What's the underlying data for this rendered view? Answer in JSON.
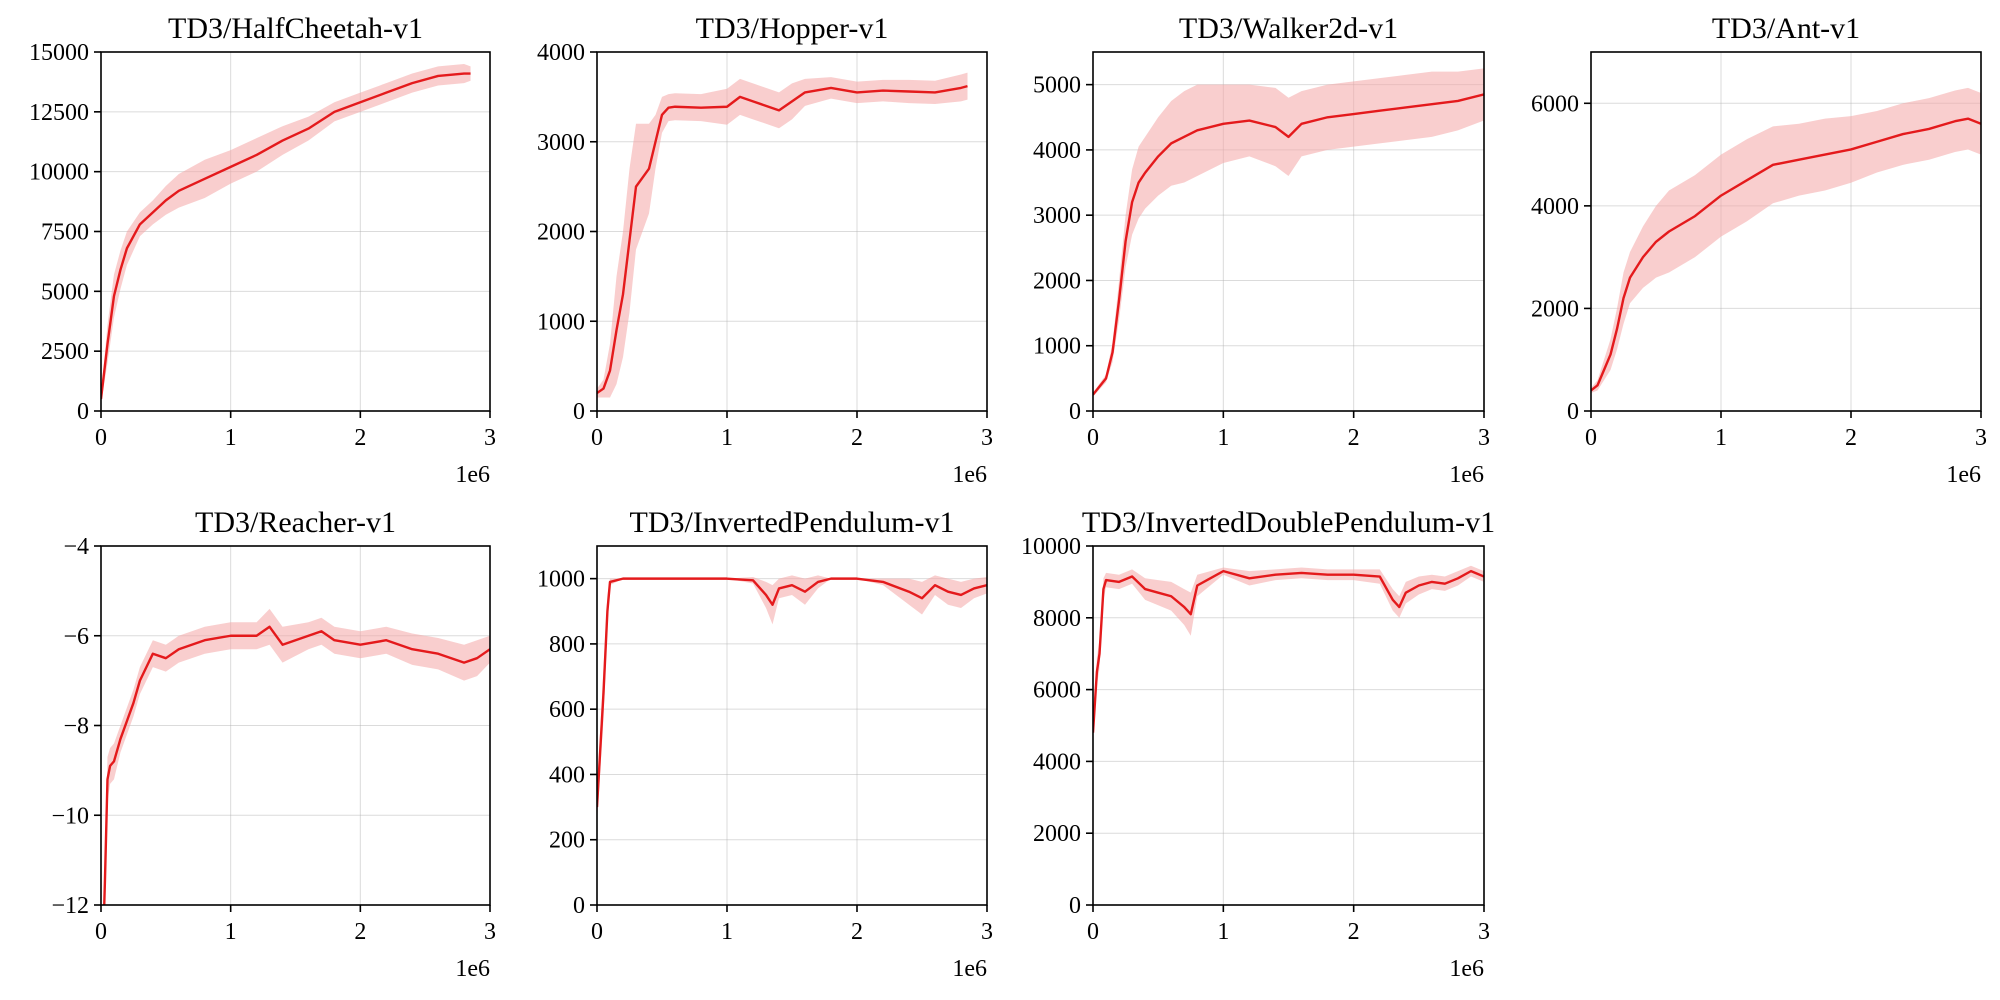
{
  "colors": {
    "line": "#e41a1c",
    "band": "#f4a6a6"
  },
  "chart_data": [
    {
      "type": "line",
      "title": "TD3/HalfCheetah-v1",
      "xlim": [
        0,
        3
      ],
      "ylim": [
        0,
        15000
      ],
      "xticks": [
        0,
        1,
        2,
        3
      ],
      "yticks": [
        0,
        2500,
        5000,
        7500,
        10000,
        12500,
        15000
      ],
      "offset_label": "1e6",
      "grid": true,
      "x": [
        0,
        0.05,
        0.1,
        0.15,
        0.2,
        0.3,
        0.4,
        0.5,
        0.6,
        0.8,
        1.0,
        1.2,
        1.4,
        1.6,
        1.8,
        2.0,
        2.2,
        2.4,
        2.6,
        2.8,
        2.85
      ],
      "y": [
        500,
        2800,
        4800,
        5900,
        6800,
        7800,
        8300,
        8800,
        9200,
        9700,
        10200,
        10700,
        11300,
        11800,
        12500,
        12900,
        13300,
        13700,
        14000,
        14100,
        14100
      ],
      "band": [
        200,
        800,
        900,
        800,
        700,
        500,
        500,
        600,
        700,
        800,
        700,
        700,
        600,
        500,
        400,
        400,
        400,
        400,
        400,
        400,
        300
      ]
    },
    {
      "type": "line",
      "title": "TD3/Hopper-v1",
      "xlim": [
        0,
        3
      ],
      "ylim": [
        0,
        4000
      ],
      "xticks": [
        0,
        1,
        2,
        3
      ],
      "yticks": [
        0,
        1000,
        2000,
        3000,
        4000
      ],
      "offset_label": "1e6",
      "grid": true,
      "x": [
        0,
        0.05,
        0.1,
        0.15,
        0.2,
        0.25,
        0.3,
        0.35,
        0.4,
        0.45,
        0.5,
        0.55,
        0.6,
        0.8,
        1.0,
        1.1,
        1.2,
        1.3,
        1.4,
        1.5,
        1.6,
        1.8,
        2.0,
        2.2,
        2.4,
        2.6,
        2.8,
        2.85
      ],
      "y": [
        200,
        250,
        450,
        900,
        1300,
        1900,
        2500,
        2600,
        2700,
        3000,
        3300,
        3380,
        3390,
        3380,
        3390,
        3500,
        3450,
        3400,
        3350,
        3450,
        3550,
        3600,
        3550,
        3570,
        3560,
        3550,
        3600,
        3620
      ],
      "band": [
        50,
        100,
        300,
        600,
        700,
        800,
        700,
        600,
        500,
        300,
        200,
        150,
        150,
        150,
        200,
        200,
        200,
        200,
        200,
        200,
        150,
        120,
        120,
        120,
        130,
        130,
        150,
        150
      ]
    },
    {
      "type": "line",
      "title": "TD3/Walker2d-v1",
      "xlim": [
        0,
        3
      ],
      "ylim": [
        0,
        5500
      ],
      "xticks": [
        0,
        1,
        2,
        3
      ],
      "yticks": [
        0,
        1000,
        2000,
        3000,
        4000,
        5000
      ],
      "offset_label": "1e6",
      "grid": true,
      "x": [
        0,
        0.1,
        0.15,
        0.2,
        0.25,
        0.3,
        0.35,
        0.4,
        0.5,
        0.6,
        0.7,
        0.8,
        1.0,
        1.2,
        1.4,
        1.5,
        1.6,
        1.8,
        2.0,
        2.2,
        2.4,
        2.6,
        2.8,
        3.0
      ],
      "y": [
        250,
        500,
        900,
        1700,
        2600,
        3200,
        3500,
        3650,
        3900,
        4100,
        4200,
        4300,
        4400,
        4450,
        4350,
        4200,
        4400,
        4500,
        4550,
        4600,
        4650,
        4700,
        4750,
        4850
      ],
      "band": [
        30,
        60,
        150,
        300,
        400,
        500,
        550,
        550,
        600,
        650,
        700,
        700,
        600,
        550,
        600,
        600,
        500,
        500,
        500,
        500,
        500,
        500,
        450,
        400
      ]
    },
    {
      "type": "line",
      "title": "TD3/Ant-v1",
      "xlim": [
        0,
        3
      ],
      "ylim": [
        0,
        7000
      ],
      "xticks": [
        0,
        1,
        2,
        3
      ],
      "yticks": [
        0,
        2000,
        4000,
        6000
      ],
      "offset_label": "1e6",
      "grid": true,
      "x": [
        0,
        0.05,
        0.1,
        0.15,
        0.2,
        0.25,
        0.3,
        0.4,
        0.5,
        0.6,
        0.8,
        1.0,
        1.2,
        1.4,
        1.6,
        1.8,
        2.0,
        2.2,
        2.4,
        2.6,
        2.8,
        2.9,
        3.0
      ],
      "y": [
        400,
        500,
        800,
        1100,
        1600,
        2200,
        2600,
        3000,
        3300,
        3500,
        3800,
        4200,
        4500,
        4800,
        4900,
        5000,
        5100,
        5250,
        5400,
        5500,
        5650,
        5700,
        5600
      ],
      "band": [
        50,
        100,
        200,
        300,
        400,
        500,
        500,
        600,
        700,
        800,
        800,
        800,
        800,
        750,
        700,
        700,
        650,
        600,
        600,
        600,
        600,
        600,
        600
      ]
    },
    {
      "type": "line",
      "title": "TD3/Reacher-v1",
      "xlim": [
        0,
        3
      ],
      "ylim": [
        -12,
        -4
      ],
      "xticks": [
        0,
        1,
        2,
        3
      ],
      "yticks": [
        -12,
        -10,
        -8,
        -6,
        -4
      ],
      "offset_label": "1e6",
      "grid": true,
      "x": [
        0.02,
        0.03,
        0.05,
        0.07,
        0.1,
        0.15,
        0.2,
        0.25,
        0.3,
        0.35,
        0.4,
        0.5,
        0.6,
        0.8,
        1.0,
        1.2,
        1.3,
        1.4,
        1.6,
        1.7,
        1.8,
        2.0,
        2.2,
        2.4,
        2.6,
        2.8,
        2.9,
        3.0
      ],
      "y": [
        -12.5,
        -11.5,
        -9.2,
        -8.9,
        -8.8,
        -8.3,
        -7.9,
        -7.5,
        -7.0,
        -6.7,
        -6.4,
        -6.5,
        -6.3,
        -6.1,
        -6.0,
        -6.0,
        -5.8,
        -6.2,
        -6.0,
        -5.9,
        -6.1,
        -6.2,
        -6.1,
        -6.3,
        -6.4,
        -6.6,
        -6.5,
        -6.3
      ],
      "band": [
        0.3,
        0.6,
        0.5,
        0.4,
        0.4,
        0.3,
        0.3,
        0.3,
        0.3,
        0.3,
        0.3,
        0.3,
        0.3,
        0.3,
        0.3,
        0.3,
        0.4,
        0.4,
        0.3,
        0.3,
        0.3,
        0.3,
        0.3,
        0.35,
        0.35,
        0.4,
        0.4,
        0.3
      ]
    },
    {
      "type": "line",
      "title": "TD3/InvertedPendulum-v1",
      "xlim": [
        0,
        3
      ],
      "ylim": [
        0,
        1100
      ],
      "xticks": [
        0,
        1,
        2,
        3
      ],
      "yticks": [
        0,
        200,
        400,
        600,
        800,
        1000
      ],
      "offset_label": "1e6",
      "grid": true,
      "x": [
        0,
        0.05,
        0.08,
        0.1,
        0.2,
        0.5,
        1.0,
        1.2,
        1.3,
        1.35,
        1.4,
        1.5,
        1.6,
        1.7,
        1.8,
        2.0,
        2.2,
        2.4,
        2.5,
        2.6,
        2.7,
        2.8,
        2.9,
        3.0
      ],
      "y": [
        300,
        650,
        900,
        990,
        1000,
        1000,
        1000,
        995,
        950,
        920,
        970,
        980,
        960,
        990,
        1000,
        1000,
        990,
        960,
        940,
        980,
        960,
        950,
        970,
        980
      ],
      "band": [
        50,
        80,
        50,
        10,
        0,
        0,
        0,
        10,
        40,
        60,
        30,
        30,
        40,
        20,
        0,
        0,
        10,
        40,
        50,
        30,
        40,
        40,
        30,
        25
      ]
    },
    {
      "type": "line",
      "title": "TD3/InvertedDoublePendulum-v1",
      "xlim": [
        0,
        3
      ],
      "ylim": [
        0,
        10000
      ],
      "xticks": [
        0,
        1,
        2,
        3
      ],
      "yticks": [
        0,
        2000,
        4000,
        6000,
        8000,
        10000
      ],
      "offset_label": "1e6",
      "grid": true,
      "x": [
        0,
        0.03,
        0.05,
        0.08,
        0.1,
        0.2,
        0.3,
        0.4,
        0.5,
        0.6,
        0.7,
        0.75,
        0.8,
        0.9,
        1.0,
        1.2,
        1.4,
        1.6,
        1.8,
        2.0,
        2.2,
        2.3,
        2.35,
        2.4,
        2.5,
        2.6,
        2.7,
        2.8,
        2.9,
        3.0
      ],
      "y": [
        4800,
        6500,
        7000,
        8800,
        9050,
        9000,
        9150,
        8800,
        8700,
        8600,
        8300,
        8100,
        8900,
        9100,
        9300,
        9100,
        9200,
        9250,
        9200,
        9200,
        9150,
        8500,
        8300,
        8700,
        8900,
        9000,
        8950,
        9100,
        9300,
        9150
      ],
      "band": [
        200,
        400,
        400,
        300,
        200,
        200,
        200,
        300,
        350,
        400,
        500,
        600,
        300,
        200,
        100,
        200,
        150,
        150,
        150,
        150,
        200,
        300,
        300,
        300,
        250,
        200,
        200,
        200,
        150,
        150
      ]
    }
  ]
}
